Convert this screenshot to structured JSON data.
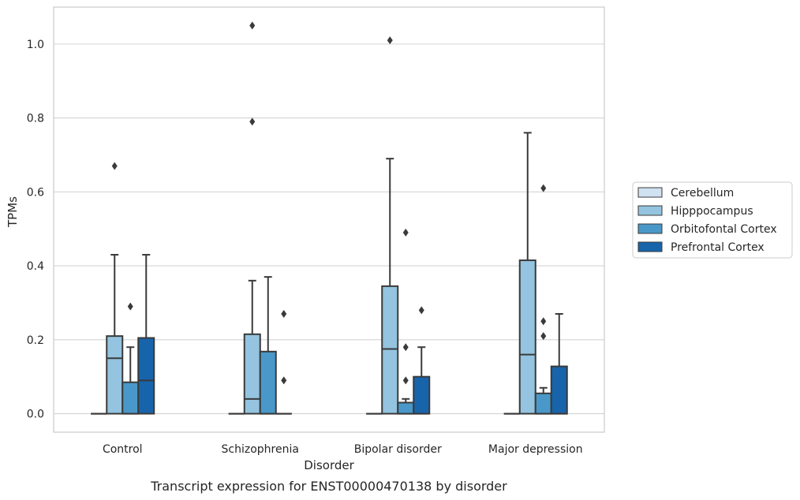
{
  "chart_data": {
    "type": "box",
    "caption": "Transcript expression for ENST00000470138 by disorder",
    "xlabel": "Disorder",
    "ylabel": "TPMs",
    "ylim": [
      -0.05,
      1.1
    ],
    "yticks": [
      "0.0",
      "0.2",
      "0.4",
      "0.6",
      "0.8",
      "1.0"
    ],
    "categories": [
      "Control",
      "Schizophrenia",
      "Bipolar disorder",
      "Major depression"
    ],
    "grid": true,
    "legend_position": "right",
    "series": [
      {
        "name": "Cerebellum",
        "color": "#d0e1f2",
        "boxes": [
          {
            "q1": 0,
            "median": 0,
            "q3": 0,
            "whisker_low": 0,
            "whisker_high": 0,
            "outliers": []
          },
          {
            "q1": 0,
            "median": 0,
            "q3": 0,
            "whisker_low": 0,
            "whisker_high": 0,
            "outliers": []
          },
          {
            "q1": 0,
            "median": 0,
            "q3": 0,
            "whisker_low": 0,
            "whisker_high": 0,
            "outliers": []
          },
          {
            "q1": 0,
            "median": 0,
            "q3": 0,
            "whisker_low": 0,
            "whisker_high": 0,
            "outliers": []
          }
        ]
      },
      {
        "name": "Hipppocampus",
        "color": "#94c4df",
        "boxes": [
          {
            "q1": 0,
            "median": 0.15,
            "q3": 0.21,
            "whisker_low": 0,
            "whisker_high": 0.43,
            "outliers": [
              0.67
            ]
          },
          {
            "q1": 0,
            "median": 0.04,
            "q3": 0.215,
            "whisker_low": 0,
            "whisker_high": 0.36,
            "outliers": [
              0.79,
              1.05
            ]
          },
          {
            "q1": 0,
            "median": 0.175,
            "q3": 0.345,
            "whisker_low": 0,
            "whisker_high": 0.69,
            "outliers": [
              1.01
            ]
          },
          {
            "q1": 0,
            "median": 0.16,
            "q3": 0.415,
            "whisker_low": 0,
            "whisker_high": 0.76,
            "outliers": []
          }
        ]
      },
      {
        "name": "Orbitofontal Cortex",
        "color": "#4a98c9",
        "boxes": [
          {
            "q1": 0,
            "median": 0,
            "q3": 0.085,
            "whisker_low": 0,
            "whisker_high": 0.18,
            "outliers": [
              0.29
            ]
          },
          {
            "q1": 0,
            "median": 0,
            "q3": 0.168,
            "whisker_low": 0,
            "whisker_high": 0.37,
            "outliers": []
          },
          {
            "q1": 0,
            "median": 0,
            "q3": 0.03,
            "whisker_low": 0,
            "whisker_high": 0.04,
            "outliers": [
              0.09,
              0.18,
              0.49
            ]
          },
          {
            "q1": 0,
            "median": 0,
            "q3": 0.055,
            "whisker_low": 0,
            "whisker_high": 0.07,
            "outliers": [
              0.21,
              0.25,
              0.61
            ]
          }
        ]
      },
      {
        "name": "Prefrontal Cortex",
        "color": "#1764ab",
        "boxes": [
          {
            "q1": 0,
            "median": 0.09,
            "q3": 0.205,
            "whisker_low": 0,
            "whisker_high": 0.43,
            "outliers": []
          },
          {
            "q1": 0,
            "median": 0,
            "q3": 0,
            "whisker_low": 0,
            "whisker_high": 0,
            "outliers": [
              0.09,
              0.27
            ]
          },
          {
            "q1": 0,
            "median": 0,
            "q3": 0.1,
            "whisker_low": 0,
            "whisker_high": 0.18,
            "outliers": [
              0.28
            ]
          },
          {
            "q1": 0,
            "median": 0,
            "q3": 0.128,
            "whisker_low": 0,
            "whisker_high": 0.27,
            "outliers": []
          }
        ]
      }
    ]
  }
}
